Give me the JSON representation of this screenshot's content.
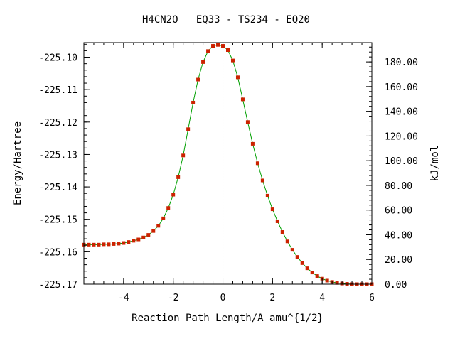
{
  "chart_data": {
    "type": "line",
    "title": "H4CN2O   EQ33 - TS234 - EQ20",
    "xlabel": "Reaction Path Length/A amu^{1/2}",
    "ylabel": "Energy/Hartree",
    "y2label": "kJ/mol",
    "xlim": [
      -5.6,
      6.0
    ],
    "ylim": [
      -225.17,
      -225.0955
    ],
    "y2lim": [
      0,
      195.6
    ],
    "x_ticks": [
      -4,
      -2,
      0,
      2,
      4,
      6
    ],
    "x_tick_labels": [
      "-4",
      "-2",
      "0",
      "2",
      "4",
      "6"
    ],
    "y_ticks": [
      -225.1,
      -225.11,
      -225.12,
      -225.13,
      -225.14,
      -225.15,
      -225.16,
      -225.17
    ],
    "y_tick_labels": [
      "-225.10",
      "-225.11",
      "-225.12",
      "-225.13",
      "-225.14",
      "-225.15",
      "-225.16",
      "-225.17"
    ],
    "y2_ticks": [
      0,
      20,
      40,
      60,
      80,
      100,
      120,
      140,
      160,
      180
    ],
    "y2_tick_labels": [
      "0.00",
      "20.00",
      "40.00",
      "60.00",
      "80.00",
      "100.00",
      "120.00",
      "140.00",
      "160.00",
      "180.00"
    ],
    "ts_marker_x": 0,
    "grid": false,
    "colors": {
      "line": "#00a000",
      "points": "#cc2200",
      "ts_line": "#999999",
      "axes": "#000000"
    },
    "series": [
      {
        "x": [
          -5.6,
          -5.4,
          -5.2,
          -5.0,
          -4.8,
          -4.6,
          -4.4,
          -4.2,
          -4.0,
          -3.8,
          -3.6,
          -3.4,
          -3.2,
          -3.0,
          -2.8,
          -2.6,
          -2.4,
          -2.2,
          -2.0,
          -1.8,
          -1.6,
          -1.4,
          -1.2,
          -1.0,
          -0.8,
          -0.6,
          -0.4,
          -0.2,
          0.0,
          0.2,
          0.4,
          0.6,
          0.8,
          1.0,
          1.2,
          1.4,
          1.6,
          1.8,
          2.0,
          2.2,
          2.4,
          2.6,
          2.8,
          3.0,
          3.2,
          3.4,
          3.6,
          3.8,
          4.0,
          4.2,
          4.4,
          4.6,
          4.8,
          5.0,
          5.2,
          5.4,
          5.6,
          5.8,
          6.0
        ],
        "y": [
          -225.1578,
          -225.1578,
          -225.1578,
          -225.1578,
          -225.1577,
          -225.1577,
          -225.1576,
          -225.1575,
          -225.1573,
          -225.157,
          -225.1566,
          -225.1562,
          -225.1556,
          -225.1548,
          -225.1536,
          -225.152,
          -225.1497,
          -225.1465,
          -225.1424,
          -225.137,
          -225.1303,
          -225.1222,
          -225.114,
          -225.1069,
          -225.1015,
          -225.0981,
          -225.0965,
          -225.0962,
          -225.0965,
          -225.0978,
          -225.101,
          -225.1062,
          -225.113,
          -225.12,
          -225.1267,
          -225.1327,
          -225.138,
          -225.1427,
          -225.1469,
          -225.1506,
          -225.1539,
          -225.1568,
          -225.1594,
          -225.1616,
          -225.1635,
          -225.1651,
          -225.1664,
          -225.1675,
          -225.1683,
          -225.1689,
          -225.1693,
          -225.1696,
          -225.1698,
          -225.1699,
          -225.17,
          -225.17,
          -225.17,
          -225.17,
          -225.17
        ]
      }
    ]
  }
}
